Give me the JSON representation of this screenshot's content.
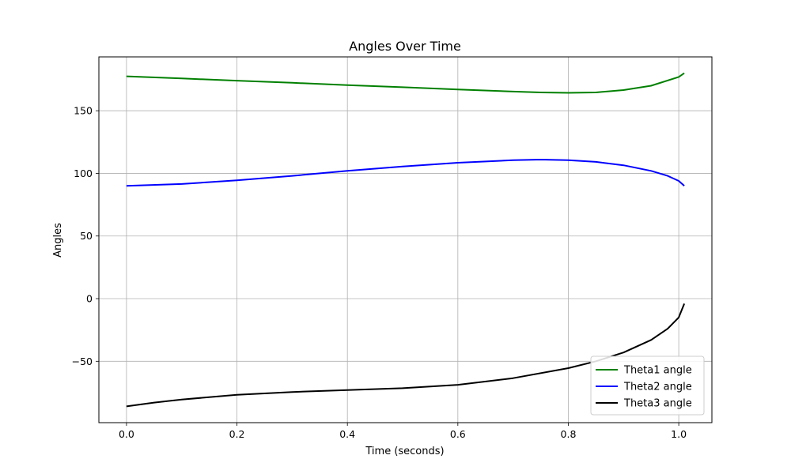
{
  "chart_data": {
    "type": "line",
    "title": "Angles Over Time",
    "xlabel": "Time (seconds)",
    "ylabel": "Angles",
    "xlim": [
      -0.05,
      1.06
    ],
    "ylim": [
      -99,
      193
    ],
    "xticks": [
      0.0,
      0.2,
      0.4,
      0.6,
      0.8,
      1.0
    ],
    "xtick_labels": [
      "0.0",
      "0.2",
      "0.4",
      "0.6",
      "0.8",
      "1.0"
    ],
    "yticks": [
      -50,
      0,
      50,
      100,
      150
    ],
    "ytick_labels": [
      "−50",
      "0",
      "50",
      "100",
      "150"
    ],
    "grid": true,
    "legend_position": "lower-right",
    "series": [
      {
        "name": "Theta1 angle",
        "color": "#008000",
        "x": [
          0,
          0.1,
          0.2,
          0.3,
          0.4,
          0.5,
          0.6,
          0.7,
          0.75,
          0.8,
          0.85,
          0.9,
          0.95,
          1.0,
          1.01
        ],
        "y": [
          177.5,
          175.8,
          174,
          172.3,
          170.5,
          168.8,
          167,
          165.3,
          164.6,
          164.3,
          164.6,
          166.5,
          170,
          177,
          180
        ]
      },
      {
        "name": "Theta2 angle",
        "color": "#0000ff",
        "x": [
          0,
          0.1,
          0.2,
          0.3,
          0.4,
          0.5,
          0.6,
          0.7,
          0.75,
          0.8,
          0.85,
          0.9,
          0.95,
          0.98,
          1.0,
          1.01
        ],
        "y": [
          90,
          91.5,
          94.5,
          98,
          102,
          105.5,
          108.5,
          110.5,
          111,
          110.6,
          109.2,
          106.5,
          102,
          98,
          94,
          90
        ]
      },
      {
        "name": "Theta3 angle",
        "color": "#000000",
        "x": [
          0,
          0.05,
          0.1,
          0.2,
          0.3,
          0.4,
          0.5,
          0.6,
          0.7,
          0.8,
          0.85,
          0.9,
          0.95,
          0.98,
          1.0,
          1.01
        ],
        "y": [
          -86,
          -83,
          -80.5,
          -76.8,
          -74.5,
          -73,
          -71.5,
          -68.8,
          -63.5,
          -55.5,
          -50,
          -43,
          -33,
          -24,
          -15,
          -4
        ]
      }
    ]
  }
}
